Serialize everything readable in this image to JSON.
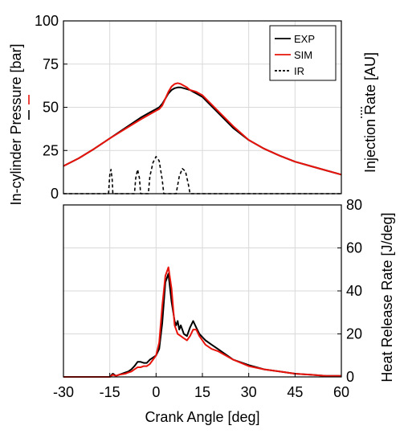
{
  "chart_data": [
    {
      "type": "line",
      "ylabel": "In-cylinder Pressure [bar]",
      "y2label": "Injection Rate [AU]",
      "xlim": [
        -30,
        60
      ],
      "ylim": [
        0,
        100
      ],
      "xticks": [
        -30,
        -15,
        0,
        15,
        30,
        45,
        60
      ],
      "yticks": [
        0,
        25,
        50,
        75,
        100
      ],
      "grid": true,
      "legend_position": "top-right",
      "series": [
        {
          "name": "EXP",
          "color": "#000000",
          "dash": "solid",
          "x": [
            -30,
            -25,
            -20,
            -15,
            -10,
            -5,
            -2,
            0,
            1,
            2,
            3,
            4,
            5,
            6,
            7,
            8,
            9,
            10,
            11,
            12,
            13,
            15,
            20,
            25,
            30,
            35,
            40,
            45,
            50,
            55,
            60
          ],
          "y": [
            16,
            20.5,
            26,
            32,
            38,
            44,
            47,
            49,
            50,
            52,
            55,
            58,
            60,
            61,
            61.5,
            61.5,
            61,
            60.5,
            60,
            59,
            58,
            56,
            47,
            38,
            31,
            26,
            22,
            18.5,
            16,
            13.5,
            11
          ]
        },
        {
          "name": "SIM",
          "color": "#e8140c",
          "dash": "solid",
          "x": [
            -30,
            -25,
            -20,
            -15,
            -10,
            -5,
            -2,
            0,
            1,
            2,
            3,
            4,
            5,
            6,
            7,
            8,
            9,
            10,
            11,
            12,
            13,
            15,
            20,
            25,
            30,
            35,
            40,
            45,
            50,
            55,
            60
          ],
          "y": [
            16,
            20.5,
            26,
            32,
            37.5,
            43,
            46,
            48,
            49,
            51,
            55,
            59,
            62,
            63.5,
            64,
            63.5,
            62.5,
            61.5,
            60,
            59.5,
            59,
            57,
            48,
            39,
            31,
            26,
            22,
            18.5,
            16,
            13.5,
            11
          ]
        },
        {
          "name": "IR",
          "color": "#000000",
          "dash": "dashed",
          "x": [
            -30,
            -15.4,
            -15,
            -14.6,
            -14.2,
            -14,
            -7,
            -6.6,
            -6,
            -5.4,
            -5,
            -2.5,
            -2,
            -1,
            0,
            1,
            2,
            2.5,
            6.5,
            7.5,
            8.5,
            9.5,
            10.5,
            11,
            60
          ],
          "y": [
            0,
            0,
            11,
            14,
            8,
            0,
            0,
            9,
            14,
            9,
            0,
            0,
            10,
            18,
            21.5,
            19,
            8,
            0,
            0,
            10,
            14.5,
            13,
            5,
            0,
            0
          ]
        }
      ]
    },
    {
      "type": "line",
      "xlabel": "Crank Angle [deg]",
      "y2label": "Heat Release Rate [J/deg]",
      "xlim": [
        -30,
        60
      ],
      "ylim": [
        0,
        80
      ],
      "xticks": [
        -30,
        -15,
        0,
        15,
        30,
        45,
        60
      ],
      "yticks": [
        0,
        20,
        40,
        60,
        80
      ],
      "grid": true,
      "series": [
        {
          "name": "EXP",
          "color": "#000000",
          "dash": "solid",
          "x": [
            -30,
            -18,
            -15,
            -14,
            -13,
            -12,
            -10,
            -9,
            -8,
            -7,
            -6,
            -5,
            -4,
            -3,
            -2,
            -1,
            0,
            1,
            2,
            3,
            4,
            5,
            6,
            6.5,
            7,
            7.5,
            8,
            9,
            10,
            11,
            12,
            13,
            14,
            16,
            18,
            20,
            25,
            30,
            35,
            40,
            45,
            50,
            55,
            60
          ],
          "y": [
            0,
            0,
            0,
            1.5,
            0.5,
            1,
            2,
            2.5,
            3.5,
            5,
            7,
            7,
            6.5,
            6.5,
            8,
            9,
            10,
            13,
            25,
            44,
            48,
            35,
            26,
            24,
            26,
            22,
            24,
            20,
            19,
            23,
            26,
            23,
            20,
            17,
            15,
            13,
            8,
            5.5,
            3.5,
            2.5,
            1.5,
            1,
            0.5,
            0.5
          ]
        },
        {
          "name": "SIM",
          "color": "#e8140c",
          "dash": "solid",
          "x": [
            -30,
            -18,
            -15,
            -14,
            -13,
            -12,
            -10,
            -9,
            -8,
            -7,
            -6,
            -5,
            -4,
            -3,
            -2,
            -1,
            0,
            1,
            2,
            3,
            4,
            5,
            6,
            7,
            8,
            9,
            10,
            11,
            12,
            13,
            14,
            16,
            18,
            20,
            25,
            30,
            35,
            40,
            45,
            50,
            55,
            60
          ],
          "y": [
            0,
            0,
            0,
            1,
            0.5,
            1,
            1.5,
            2,
            2.5,
            3.5,
            4.5,
            4.5,
            5,
            5,
            6,
            8,
            10,
            16,
            33,
            47,
            51,
            41,
            24,
            20,
            19,
            18,
            17,
            19,
            22,
            22,
            19,
            15,
            13,
            12,
            8,
            5,
            3.5,
            2.5,
            1.5,
            1,
            0.5,
            0.5
          ]
        }
      ]
    }
  ]
}
